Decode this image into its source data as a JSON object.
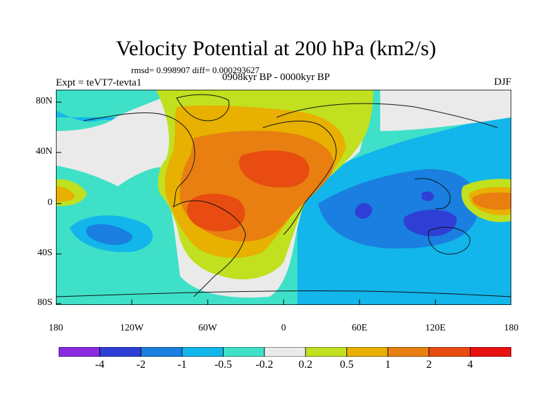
{
  "title": "Velocity Potential at 200 hPa (km2/s)",
  "stats": "rmsd= 0.998907 diff= 0.000293627",
  "experiment": "Expt = teVT7-tevta1",
  "period": "0908kyr BP - 0000kyr BP",
  "season": "DJF",
  "lat_labels": [
    "80N",
    "40N",
    "0",
    "40S",
    "80S"
  ],
  "lon_labels": [
    "180",
    "120W",
    "60W",
    "0",
    "60E",
    "120E",
    "180"
  ],
  "colorbar": {
    "labels": [
      "-4",
      "-2",
      "-1",
      "-0.5",
      "-0.2",
      "0.2",
      "0.5",
      "1",
      "2",
      "4"
    ],
    "colors": [
      "#8a2be2",
      "#2f3fd6",
      "#1a7fe0",
      "#12b6ea",
      "#3fe0c8",
      "#eaeaea",
      "#c0e020",
      "#e8b000",
      "#e87f10",
      "#e84c10",
      "#e81010"
    ]
  },
  "colors": {
    "ocean_land_neutral": "#eaeaea",
    "coast": "#111111"
  }
}
